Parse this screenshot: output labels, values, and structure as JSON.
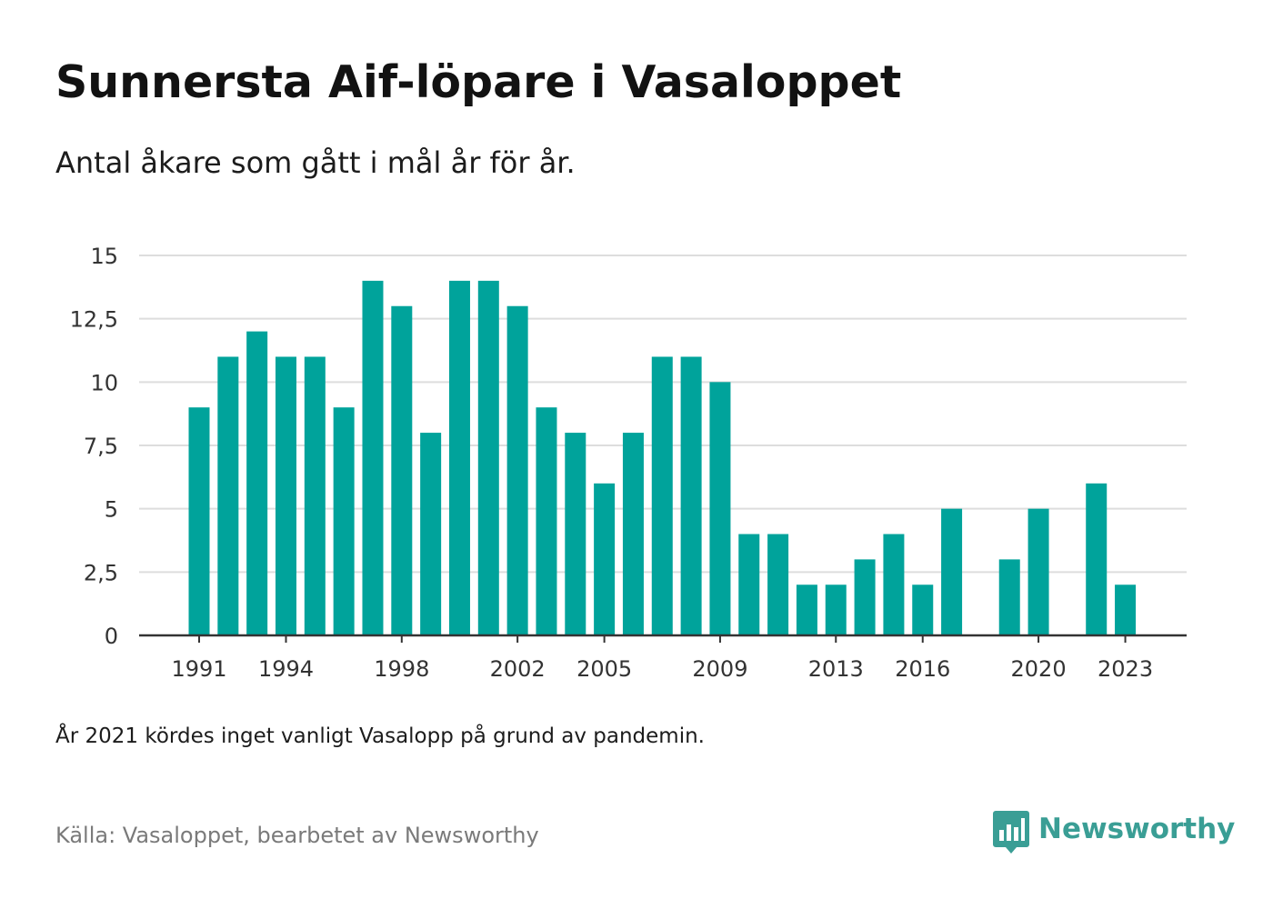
{
  "title": "Sunnersta Aif-löpare i Vasaloppet",
  "subtitle": "Antal åkare som gått i mål år för år.",
  "note": "År 2021 kördes inget vanligt Vasalopp på grund av pandemin.",
  "source": "Källa: Vasaloppet, bearbetet av Newsworthy",
  "brand": {
    "name": "Newsworthy",
    "icon": "newsworthy-logo-icon",
    "color": "#3a9e95"
  },
  "colors": {
    "bar": "#00a39b",
    "grid": "#dddddd",
    "axis": "#333333"
  },
  "chart_data": {
    "type": "bar",
    "title": "Sunnersta Aif-löpare i Vasaloppet",
    "subtitle": "Antal åkare som gått i mål år för år.",
    "xlabel": "",
    "ylabel": "",
    "ylim": [
      0,
      15
    ],
    "yticks": [
      0,
      2.5,
      5,
      7.5,
      10,
      12.5,
      15
    ],
    "ytick_labels": [
      "0",
      "2,5",
      "5",
      "7,5",
      "10",
      "12,5",
      "15"
    ],
    "xtick_labels": [
      "1991",
      "1994",
      "1998",
      "2002",
      "2005",
      "2009",
      "2013",
      "2016",
      "2020",
      "2023"
    ],
    "grid": true,
    "categories": [
      1991,
      1992,
      1993,
      1994,
      1995,
      1996,
      1997,
      1998,
      1999,
      2000,
      2001,
      2002,
      2003,
      2004,
      2005,
      2006,
      2007,
      2008,
      2009,
      2010,
      2011,
      2012,
      2013,
      2014,
      2015,
      2016,
      2017,
      2018,
      2019,
      2020,
      2021,
      2022,
      2023
    ],
    "values": [
      9,
      11,
      12,
      11,
      11,
      9,
      14,
      13,
      8,
      14,
      14,
      13,
      9,
      8,
      6,
      8,
      11,
      11,
      10,
      4,
      4,
      2,
      2,
      3,
      4,
      2,
      5,
      0,
      3,
      5,
      0,
      6,
      2
    ]
  }
}
